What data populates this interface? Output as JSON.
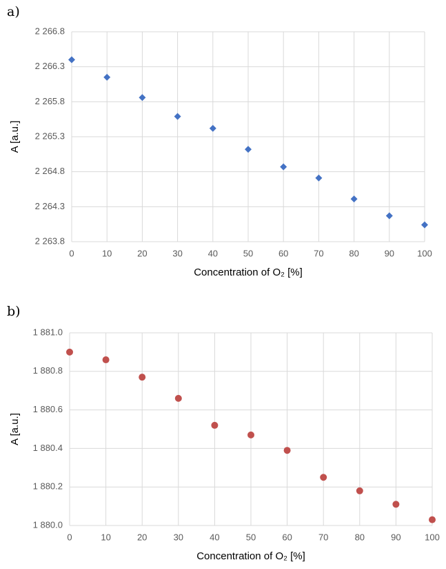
{
  "chart_data": [
    {
      "type": "scatter",
      "panel_label": "a)",
      "x_label": "Concentration of O₂ [%]",
      "y_label": "A [a.u.]",
      "marker": "diamond",
      "color": "#4472c4",
      "grid": true,
      "x": [
        0,
        10,
        20,
        30,
        40,
        50,
        60,
        70,
        80,
        90,
        100
      ],
      "values": [
        2266.4,
        2266.15,
        2265.86,
        2265.59,
        2265.42,
        2265.12,
        2264.87,
        2264.71,
        2264.41,
        2264.17,
        2264.04
      ],
      "xlim": [
        0,
        100
      ],
      "xticks": [
        0,
        10,
        20,
        30,
        40,
        50,
        60,
        70,
        80,
        90,
        100
      ],
      "ylim": [
        2263.8,
        2266.8
      ],
      "yticks": [
        {
          "value": 2263.8,
          "label": "2 263.8"
        },
        {
          "value": 2264.3,
          "label": "2 264.3"
        },
        {
          "value": 2264.8,
          "label": "2 264.8"
        },
        {
          "value": 2265.3,
          "label": "2 265.3"
        },
        {
          "value": 2265.8,
          "label": "2 265.8"
        },
        {
          "value": 2266.3,
          "label": "2 266.3"
        },
        {
          "value": 2266.8,
          "label": "2 266.8"
        }
      ]
    },
    {
      "type": "scatter",
      "panel_label": "b)",
      "x_label": "Concentration of O₂ [%]",
      "y_label": "A [a.u.]",
      "marker": "circle",
      "color": "#c0504d",
      "grid": true,
      "x": [
        0,
        10,
        20,
        30,
        40,
        50,
        60,
        70,
        80,
        90,
        100
      ],
      "values": [
        1880.9,
        1880.86,
        1880.77,
        1880.66,
        1880.52,
        1880.47,
        1880.39,
        1880.25,
        1880.18,
        1880.11,
        1880.03
      ],
      "xlim": [
        0,
        100
      ],
      "xticks": [
        0,
        10,
        20,
        30,
        40,
        50,
        60,
        70,
        80,
        90,
        100
      ],
      "ylim": [
        1880.0,
        1881.0
      ],
      "yticks": [
        {
          "value": 1880.0,
          "label": "1 880.0"
        },
        {
          "value": 1880.2,
          "label": "1 880.2"
        },
        {
          "value": 1880.4,
          "label": "1 880.4"
        },
        {
          "value": 1880.6,
          "label": "1 880.6"
        },
        {
          "value": 1880.8,
          "label": "1 880.8"
        },
        {
          "value": 1881.0,
          "label": "1 881.0"
        }
      ]
    }
  ]
}
